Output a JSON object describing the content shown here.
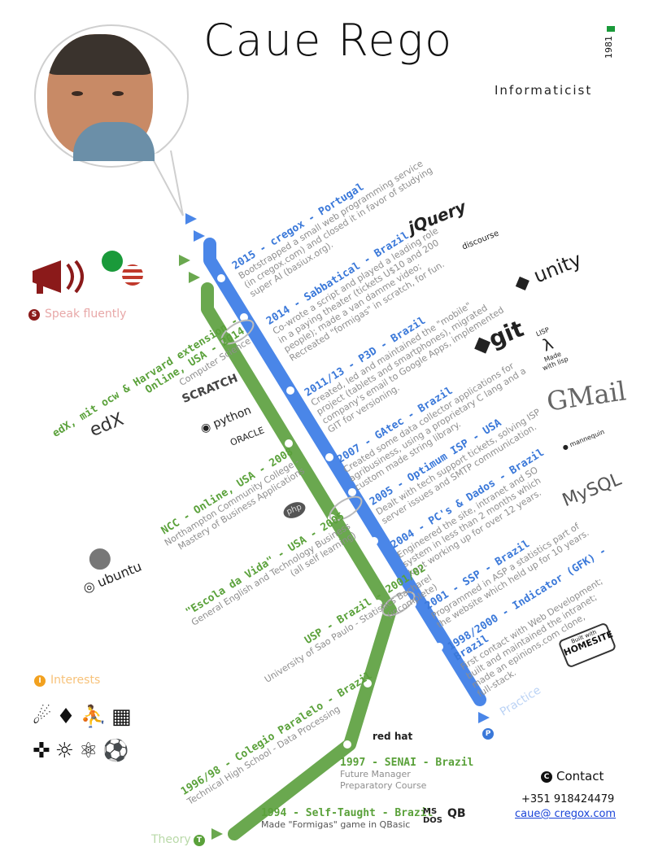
{
  "header": {
    "name": "Caue Rego",
    "birth_year": "1981",
    "role": "Informaticist"
  },
  "legend": {
    "practice": {
      "letter": "P",
      "label": "Practice",
      "color": "#3a78d9"
    },
    "theory": {
      "letter": "T",
      "label": "Theory",
      "color": "#5aa13a"
    },
    "speak": {
      "letter": "S",
      "label": "Speak fluently",
      "color": "#8b1a1a"
    },
    "interests": {
      "letter": "I",
      "label": "Interests",
      "color": "#f2a11f"
    },
    "contact": {
      "letter": "C",
      "label": "Contact"
    }
  },
  "contact": {
    "phone": "+351 918424479",
    "email": "caue@ cregox.com"
  },
  "practice": [
    {
      "title": "2015 - cregox - Portugal",
      "desc": [
        "Bootstrapped a small web programming service",
        "(in cregox.com) and closed it in favor of studying",
        "super AI (basiux.org)."
      ]
    },
    {
      "title": "2014 - Sabbatical - Brazil",
      "desc": [
        "Co-wrote a script and played a leading role",
        "in a paying theater (tickets U$10 and 200",
        "people); made a van damme video;",
        "Recreated \"formigas\" in scratch, for fun."
      ]
    },
    {
      "title": "2011/13 - P3D - Brazil",
      "desc": [
        "Created, led and maintained the \"mobile\"",
        "project (tablets and smartphones), migrated",
        "company's email to Google Apps, implemented",
        "GIT for versioning."
      ]
    },
    {
      "title": "2007 - GAtec - Brazil",
      "desc": [
        "Created some data collector applications for",
        "agribusiness, using a proprietary C lang and a",
        "custom made string library."
      ]
    },
    {
      "title": "2005 - Optimum ISP - USA",
      "desc": [
        "Dealt with tech support tickets, solving ISP",
        "server issues and SMTP communication."
      ]
    },
    {
      "title": "2004 - PC's & Dados - Brazil",
      "desc": [
        "Engineered the site, intranet and SO",
        "system in less than 2 months which",
        "kept working up for over 12 years."
      ]
    },
    {
      "title": "2001 - SSP - Brazil",
      "desc": [
        "Programmed in ASP a statistics part of",
        "the website which held up for 10 years."
      ]
    },
    {
      "title": "1998/2000 - Indicator (GFK) -",
      "title2": "Brazil",
      "desc": [
        "First contact with Web Development;",
        "built and maintained the intranet;",
        "made an epinions.com clone,",
        "full-stack."
      ]
    }
  ],
  "theory": [
    {
      "title": "edX, mit ocw & Harvard extension -",
      "title2": "Online, USA - 2014",
      "desc": [
        "Computer Science"
      ]
    },
    {
      "title": "NCC - Online, USA - 2008",
      "desc": [
        "Northampton Community College -",
        "Mastery of Business Applications"
      ]
    },
    {
      "title": "\"Escola da Vida\" - USA - 2005",
      "desc": [
        "General English and Technology Business",
        "(all self learning)"
      ]
    },
    {
      "title": "USP - Brazil - 2001/02",
      "desc": [
        "University of Sao Paulo - Statistics Bacharel",
        "(incomplete)"
      ]
    },
    {
      "title": "1996/98 - Colegio Paralelo - Brazil",
      "desc": [
        "Technical High School - Data Processing"
      ]
    },
    {
      "title": "1997 - SENAI - Brazil",
      "desc": [
        "Future Manager",
        "Preparatory Course"
      ]
    },
    {
      "title": "1994 - Self-Taught - Brazil",
      "desc": [
        "Made \"Formigas\" game in QBasic"
      ]
    }
  ],
  "logos": {
    "jquery": "jQuery",
    "discourse": "discourse",
    "unity": "unity",
    "git": "git",
    "gmail": "GMail",
    "mysql": "MySQL",
    "homesite": "HOMESITE",
    "homesite_top": "Built with",
    "redhat": "red hat",
    "qb": "QB",
    "ms": "MS DOS",
    "edx": "edX",
    "scratch": "SCRATCH",
    "python": "python",
    "oracle": "ORACLE",
    "php": "php",
    "ubuntu": "ubuntu",
    "mannequin": "mannequin",
    "lisp_label": "LISP",
    "lisp_sub": "Made with lisp"
  },
  "colors": {
    "practice_line": "#4a86e8",
    "theory_line": "#6aa84f",
    "speak_icon": "#8b1a1a"
  }
}
